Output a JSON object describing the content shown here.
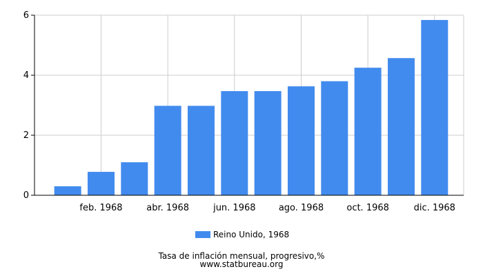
{
  "chart_data": {
    "type": "bar",
    "categories": [
      "ene. 1968",
      "feb. 1968",
      "mar. 1968",
      "abr. 1968",
      "may. 1968",
      "jun. 1968",
      "jul. 1968",
      "ago. 1968",
      "sept. 1968",
      "oct. 1968",
      "nov. 1968",
      "dic. 1968"
    ],
    "x_tick_labels": [
      "feb. 1968",
      "abr. 1968",
      "jun. 1968",
      "ago. 1968",
      "oct. 1968",
      "dic. 1968"
    ],
    "series": [
      {
        "name": "Reino Unido, 1968",
        "values": [
          0.3,
          0.78,
          1.1,
          2.98,
          2.98,
          3.47,
          3.47,
          3.63,
          3.8,
          4.25,
          4.57,
          5.84
        ]
      }
    ],
    "ylim": [
      0,
      6
    ],
    "yticks": [
      0,
      2,
      4,
      6
    ],
    "grid": true,
    "legend_position": "bottom",
    "bar_color": "#428bee",
    "title": "Tasa de inflación mensual, progresivo,%",
    "source": "www.statbureau.org"
  }
}
